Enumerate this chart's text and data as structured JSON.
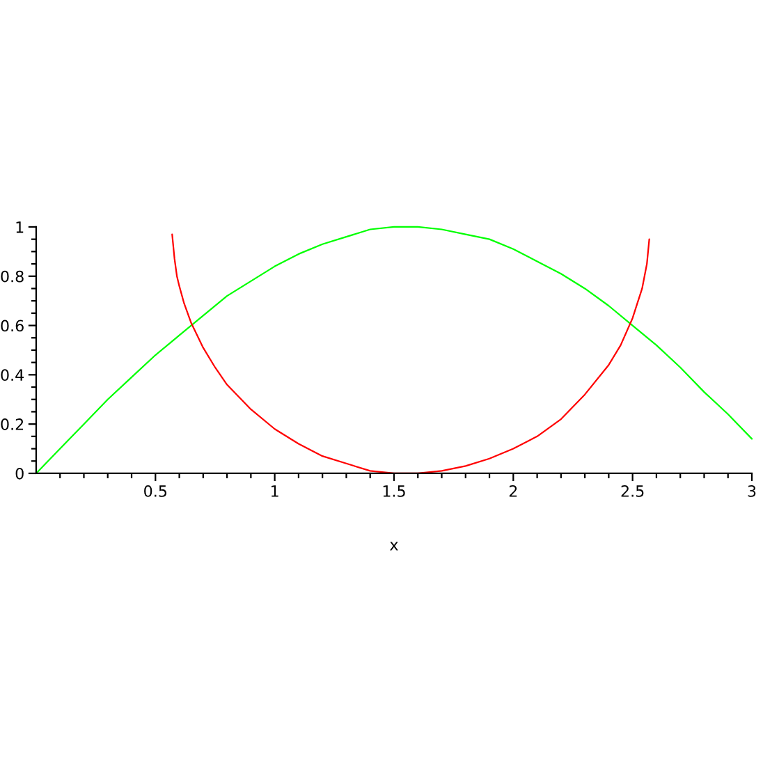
{
  "chart_data": {
    "type": "line",
    "xlabel": "x",
    "line_style": "solid",
    "xlim": [
      0,
      3
    ],
    "ylim": [
      0,
      1
    ],
    "xticks": [
      {
        "value": 0.1,
        "label": null
      },
      {
        "value": 0.2,
        "label": null
      },
      {
        "value": 0.3,
        "label": null
      },
      {
        "value": 0.4,
        "label": null
      },
      0.5,
      {
        "value": 0.6,
        "label": null
      },
      {
        "value": 0.7,
        "label": null
      },
      {
        "value": 0.8,
        "label": null
      },
      {
        "value": 0.9,
        "label": null
      },
      1,
      {
        "value": 1.1,
        "label": null
      },
      {
        "value": 1.2,
        "label": null
      },
      {
        "value": 1.3,
        "label": null
      },
      {
        "value": 1.4,
        "label": null
      },
      1.5,
      {
        "value": 1.6,
        "label": null
      },
      {
        "value": 1.7,
        "label": null
      },
      {
        "value": 1.8,
        "label": null
      },
      {
        "value": 1.9,
        "label": null
      },
      2,
      {
        "value": 2.1,
        "label": null
      },
      {
        "value": 2.2,
        "label": null
      },
      {
        "value": 2.3,
        "label": null
      },
      {
        "value": 2.4,
        "label": null
      },
      2.5,
      {
        "value": 2.6,
        "label": null
      },
      {
        "value": 2.7,
        "label": null
      },
      {
        "value": 2.8,
        "label": null
      },
      {
        "value": 2.9,
        "label": null
      },
      3
    ],
    "yticks": [
      0,
      {
        "value": 0.05,
        "label": null
      },
      {
        "value": 0.1,
        "label": null
      },
      {
        "value": 0.15,
        "label": null
      },
      0.2,
      {
        "value": 0.25,
        "label": null
      },
      {
        "value": 0.3,
        "label": null
      },
      {
        "value": 0.35,
        "label": null
      },
      0.4,
      {
        "value": 0.45,
        "label": null
      },
      {
        "value": 0.5,
        "label": null
      },
      {
        "value": 0.55,
        "label": null
      },
      0.6,
      {
        "value": 0.65,
        "label": null
      },
      {
        "value": 0.7,
        "label": null
      },
      {
        "value": 0.75,
        "label": null
      },
      0.8,
      {
        "value": 0.85,
        "label": null
      },
      {
        "value": 0.9,
        "label": null
      },
      {
        "value": 0.95,
        "label": null
      },
      1
    ],
    "series": [
      {
        "color": "#00ff00",
        "x": [
          0,
          0.1,
          0.2,
          0.3,
          0.4,
          0.5,
          0.6,
          0.7,
          0.8,
          0.9,
          1.0,
          1.1,
          1.2,
          1.3,
          1.4,
          1.5,
          1.6,
          1.7,
          1.8,
          1.9,
          2.0,
          2.1,
          2.2,
          2.3,
          2.4,
          2.5,
          2.6,
          2.7,
          2.8,
          2.9,
          3.0
        ],
        "values": [
          0,
          0.1,
          0.2,
          0.3,
          0.39,
          0.48,
          0.56,
          0.64,
          0.72,
          0.78,
          0.84,
          0.89,
          0.93,
          0.96,
          0.99,
          1.0,
          1.0,
          0.99,
          0.97,
          0.95,
          0.91,
          0.86,
          0.81,
          0.75,
          0.68,
          0.6,
          0.52,
          0.43,
          0.33,
          0.24,
          0.14
        ]
      },
      {
        "color": "#ff0000",
        "x": [
          0.57,
          0.58,
          0.59,
          0.6,
          0.62,
          0.65,
          0.7,
          0.75,
          0.8,
          0.9,
          1.0,
          1.1,
          1.2,
          1.3,
          1.4,
          1.5,
          1.57,
          1.6,
          1.7,
          1.8,
          1.9,
          2.0,
          2.1,
          2.2,
          2.3,
          2.4,
          2.45,
          2.5,
          2.52,
          2.54,
          2.55,
          2.56,
          2.57
        ],
        "values": [
          0.97,
          0.87,
          0.8,
          0.76,
          0.69,
          0.61,
          0.51,
          0.43,
          0.36,
          0.26,
          0.18,
          0.12,
          0.07,
          0.04,
          0.01,
          0.0,
          0.0,
          0.0,
          0.01,
          0.03,
          0.06,
          0.1,
          0.15,
          0.22,
          0.32,
          0.44,
          0.52,
          0.63,
          0.69,
          0.75,
          0.8,
          0.85,
          0.95
        ]
      }
    ]
  }
}
